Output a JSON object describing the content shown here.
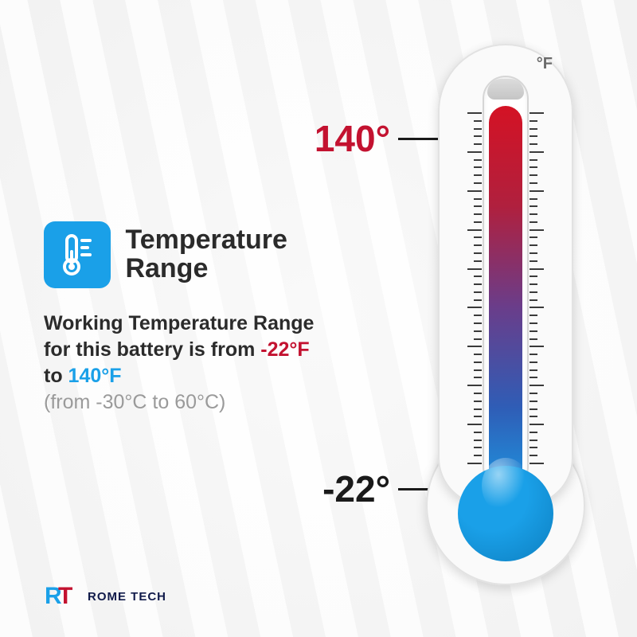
{
  "title": "Temperature\nRange",
  "icon": {
    "bg_color": "#1aa0e8",
    "fg_color": "#ffffff"
  },
  "description": {
    "prefix": "Working Temperature Range for this battery is from ",
    "low_f": "-22°F",
    "mid": " to ",
    "high_f": "140°F",
    "celsius": "(from -30°C to 60°C)"
  },
  "colors": {
    "text_main": "#2b2b2b",
    "text_muted": "#9a9a9a",
    "temp_low": "#c31230",
    "temp_high": "#1aa0e8",
    "callout_high_color": "#c31230",
    "callout_low_color": "#1a1a1a"
  },
  "thermometer": {
    "unit": "°F",
    "high_label": "140°",
    "low_label": "-22°",
    "fluid_gradient": [
      "#d41224",
      "#b0203e",
      "#6a3d8a",
      "#2f5db6",
      "#1aa0e8"
    ],
    "bulb_color": "#1aa0e8",
    "bulb_dark": "#0d7fc0",
    "tick_count": 45,
    "major_every": 5
  },
  "logo": {
    "r_color": "#1aa0e8",
    "t_color": "#c31230",
    "text": "ROME TECH",
    "text_color": "#101a4a"
  }
}
